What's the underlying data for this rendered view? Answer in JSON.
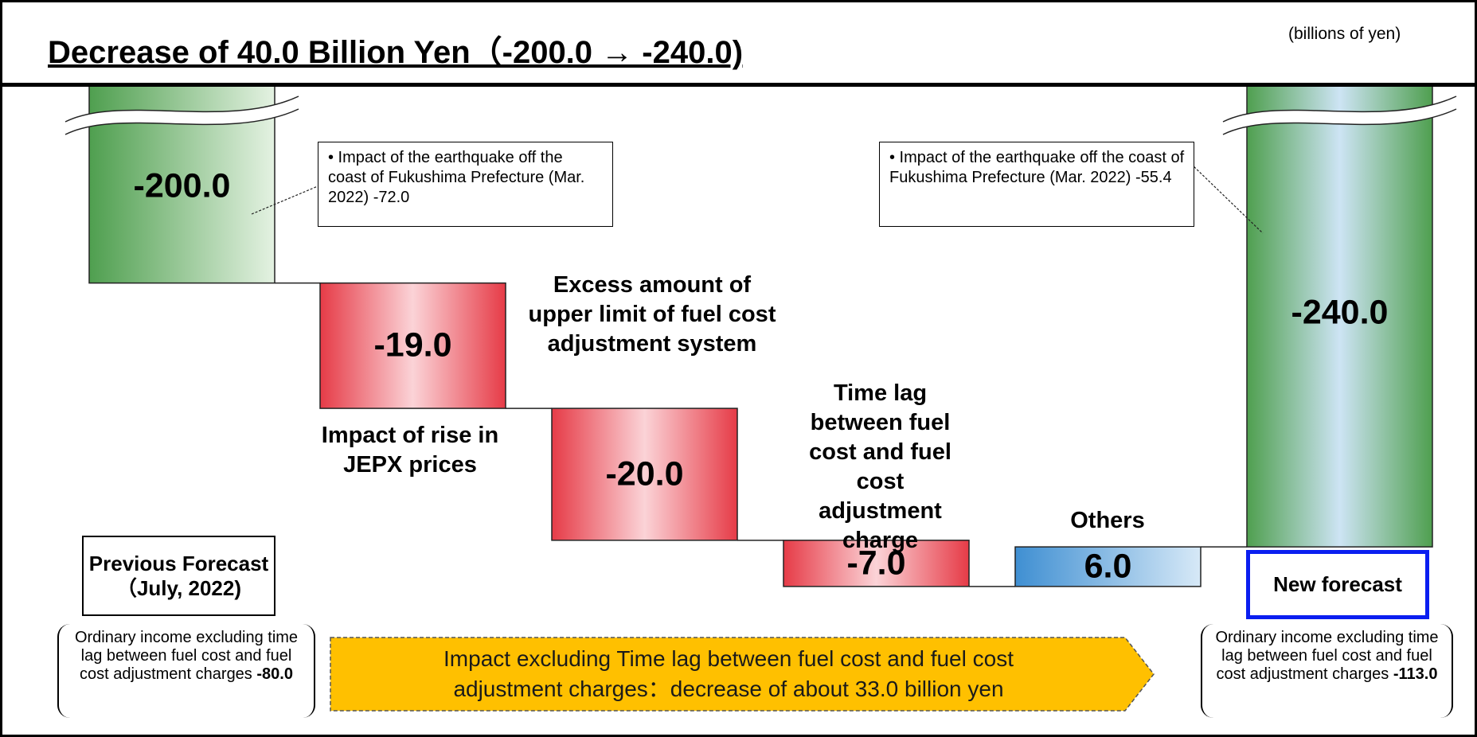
{
  "chart_data": {
    "type": "waterfall",
    "title": "Decrease of 40.0 Billion Yen（-200.0 →  -240.0)",
    "unit_label": "(billions of yen)",
    "categories": [
      "Previous Forecast（July, 2022)",
      "Impact of rise in JEPX prices",
      "Excess amount of upper limit of fuel cost adjustment system",
      "Time lag between fuel cost and fuel cost adjustment charge",
      "Others",
      "New forecast"
    ],
    "values": [
      -200.0,
      -19.0,
      -20.0,
      -7.0,
      6.0,
      -240.0
    ],
    "value_labels": [
      "-200.0",
      "-19.0",
      "-20.0",
      "-7.0",
      "6.0",
      "-240.0"
    ],
    "ylim": [
      -250,
      -170
    ],
    "colors": {
      "total": "#4f9f4f",
      "decrease": "#e63b47",
      "increase": "#3f8fd2"
    },
    "annotations": [
      {
        "text": "• Impact of the earthquake off the coast of Fukushima Prefecture (Mar. 2022)     -72.0"
      },
      {
        "text": "• Impact of the earthquake off the coast of Fukushima Prefecture (Mar. 2022)     -55.4"
      }
    ],
    "bracket_notes": [
      {
        "text": "Ordinary income excluding time lag between fuel cost and fuel cost adjustment charges",
        "value": "-80.0"
      },
      {
        "text": "Ordinary income excluding time lag between fuel cost and fuel cost adjustment charges",
        "value": "-113.0"
      }
    ],
    "banner": "Impact excluding Time lag between fuel cost and fuel cost adjustment charges：decrease of about 33.0 billion yen"
  }
}
